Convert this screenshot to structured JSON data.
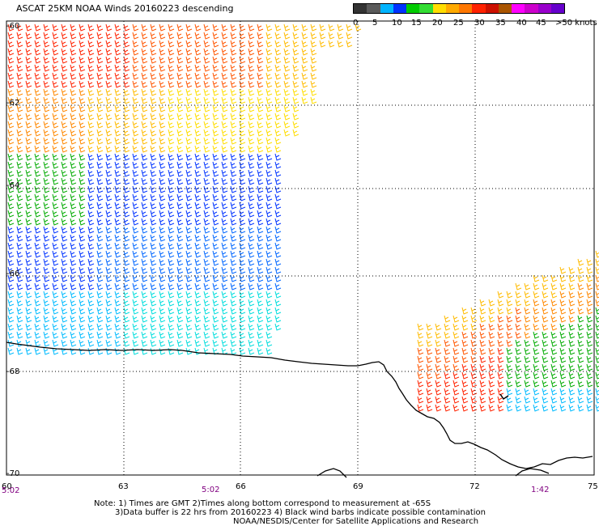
{
  "title": "ASCAT 25KM NOAA Winds 20160223 descending",
  "legend": {
    "colors": [
      "#333333",
      "#5a5a5a",
      "#00b4ff",
      "#0033ff",
      "#00cc00",
      "#33dd33",
      "#ffdd00",
      "#ffaa00",
      "#ff7700",
      "#ff2200",
      "#cc1100",
      "#aa5500",
      "#ff00ff",
      "#cc00cc",
      "#9900cc",
      "#6600cc"
    ],
    "labels": [
      "0",
      "5",
      "10",
      "15",
      "20",
      "25",
      "30",
      "35",
      "40",
      "45",
      ">50 knots"
    ]
  },
  "lat_labels": [
    "-60",
    "-62",
    "-64",
    "-66",
    "-68",
    "-70"
  ],
  "lon_labels": [
    "60",
    "63",
    "66",
    "69",
    "72",
    "75"
  ],
  "time_labels": [
    "5:02",
    "5:02",
    "1:42"
  ],
  "notes": {
    "line1": "Note: 1) Times are GMT 2)Times along bottom correspond to measurement at -65S",
    "line2": "3)Data buffer is 22 hrs from 20160223 4) Black wind barbs indicate possible contamination",
    "line3": "NOAA/NESDIS/Center for Satellite Applications and Research"
  },
  "colors": {
    "frame": "#000000",
    "grid": "#000000",
    "coast": "#000000"
  }
}
